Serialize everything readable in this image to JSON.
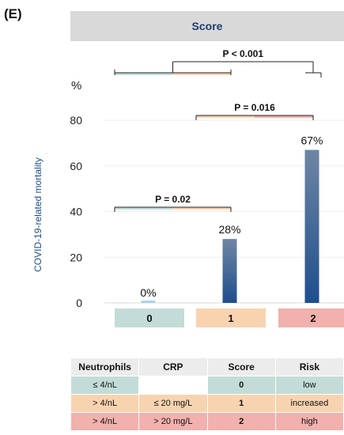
{
  "panel_label": "(E)",
  "header": {
    "title": "Score"
  },
  "chart_data": {
    "type": "bar",
    "categories": [
      "0",
      "1",
      "2"
    ],
    "values": [
      0,
      28,
      67
    ],
    "value_labels": [
      "0%",
      "28%",
      "67%"
    ],
    "ylabel": "COVID-19-related mortality",
    "yunit": "%",
    "ylim": [
      0,
      80
    ],
    "yticks": [
      0,
      20,
      40,
      60,
      80
    ],
    "grid": true,
    "category_colors": [
      "#c3dcd8",
      "#f8d3b0",
      "#f1b1ac"
    ],
    "bar_color_top": "#6e86a4",
    "bar_color_bottom": "#1f4e8c",
    "significance": [
      {
        "from": "0",
        "to": "1",
        "label": "P = 0.02"
      },
      {
        "from": "1",
        "to": "2",
        "label": "P = 0.016"
      },
      {
        "from": "0",
        "to": "2",
        "label": "P < 0.001"
      }
    ]
  },
  "table": {
    "headers": [
      "Neutrophils",
      "CRP",
      "Score",
      "Risk"
    ],
    "rows": [
      {
        "cells": [
          "≤ 4/nL",
          "",
          "0",
          "low"
        ],
        "color": "#c3dcd8"
      },
      {
        "cells": [
          "> 4/nL",
          "≤ 20 mg/L",
          "1",
          "increased"
        ],
        "color": "#f8d3b0"
      },
      {
        "cells": [
          "> 4/nL",
          "> 20 mg/L",
          "2",
          "high"
        ],
        "color": "#f1b1ac"
      }
    ]
  }
}
